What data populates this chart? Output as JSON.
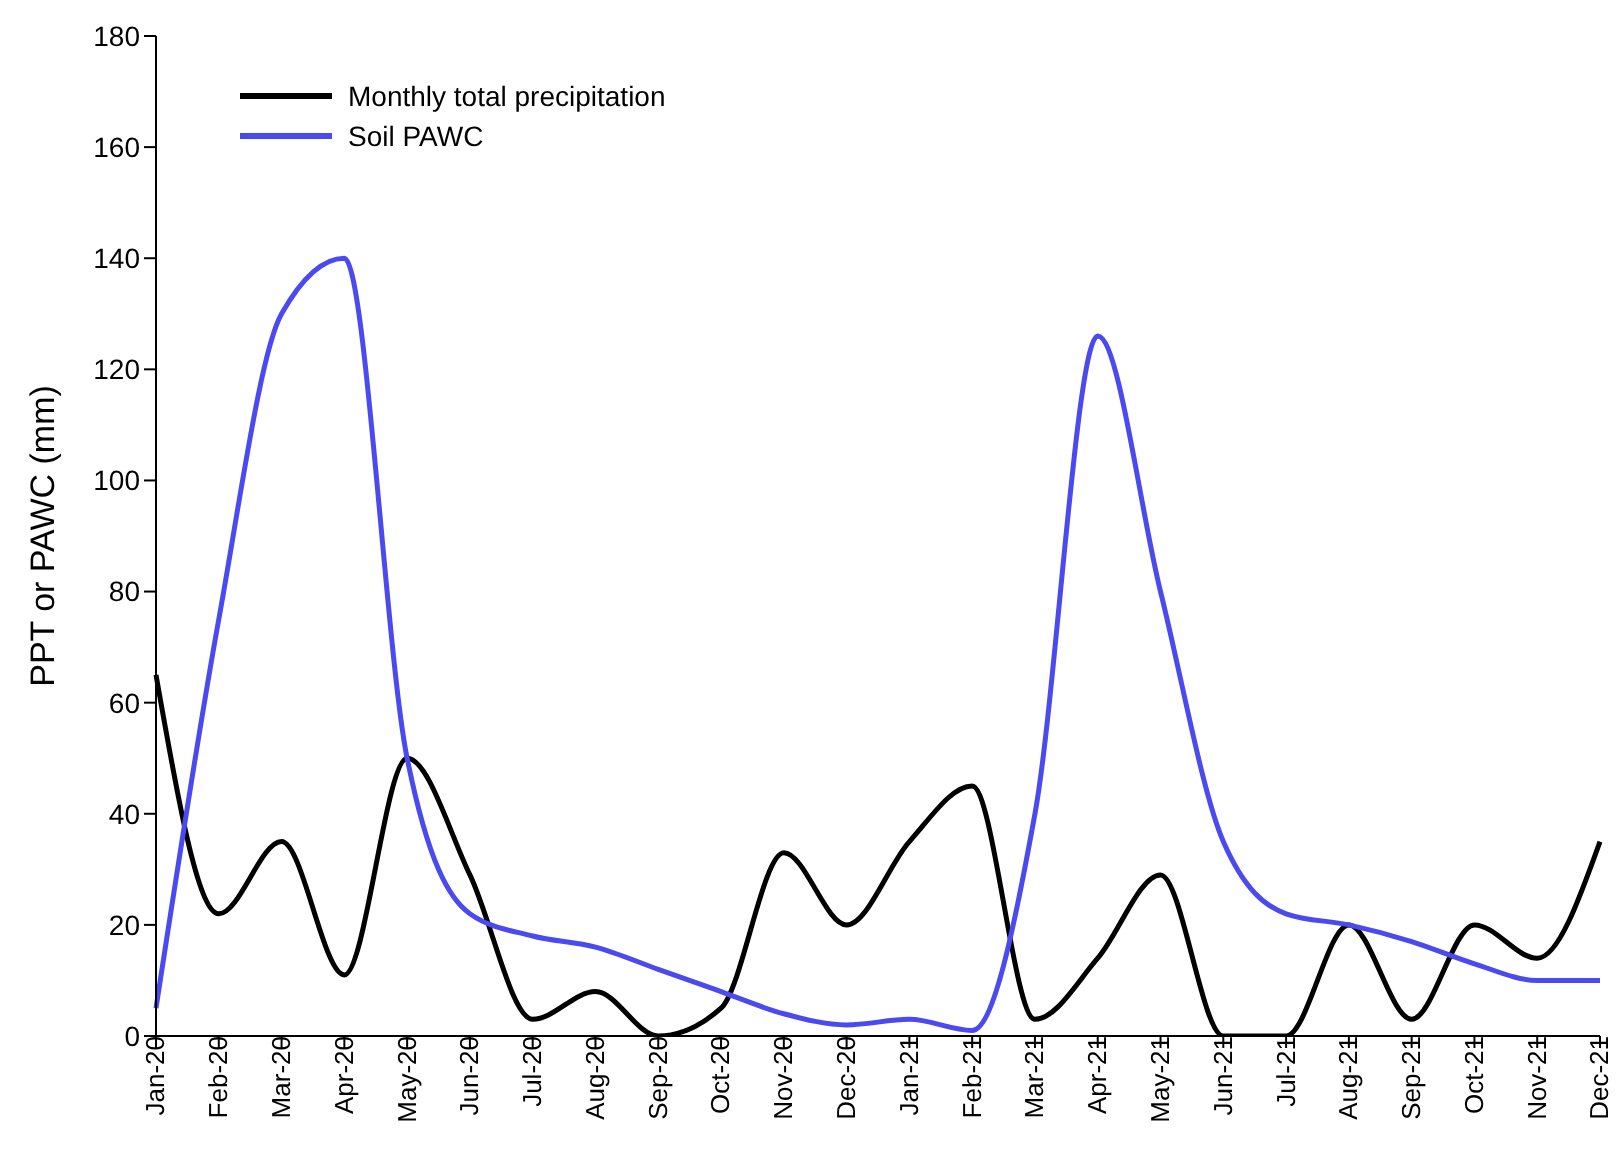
{
  "chart_data": {
    "type": "line",
    "ylabel": "PPT or PAWC (mm)",
    "categories": [
      "Jan-20",
      "Feb-20",
      "Mar-20",
      "Apr-20",
      "May-20",
      "Jun-20",
      "Jul-20",
      "Aug-20",
      "Sep-20",
      "Oct-20",
      "Nov-20",
      "Dec-20",
      "Jan-21",
      "Feb-21",
      "Mar-21",
      "Apr-21",
      "May-21",
      "Jun-21",
      "Jul-21",
      "Aug-21",
      "Sep-21",
      "Oct-21",
      "Nov-21",
      "Dec-21"
    ],
    "series": [
      {
        "name": "Monthly total precipitation",
        "color": "#000000",
        "values": [
          65,
          22,
          35,
          11,
          50,
          29,
          3,
          8,
          0,
          5,
          33,
          20,
          35,
          45,
          3,
          14,
          29,
          0,
          0,
          20,
          3,
          20,
          14,
          35
        ]
      },
      {
        "name": "Soil PAWC",
        "color": "#4a4af0",
        "values": [
          5,
          75,
          130,
          140,
          50,
          22,
          18,
          16,
          12,
          8,
          4,
          2,
          3,
          1,
          40,
          126,
          80,
          35,
          22,
          20,
          17,
          13,
          10,
          10
        ]
      }
    ],
    "ylim": [
      0,
      180
    ],
    "yticks": [
      0,
      20,
      40,
      60,
      80,
      100,
      120,
      140,
      160,
      180
    ],
    "grid": false,
    "legend": "top left",
    "marker": "none",
    "line_style": "solid"
  }
}
